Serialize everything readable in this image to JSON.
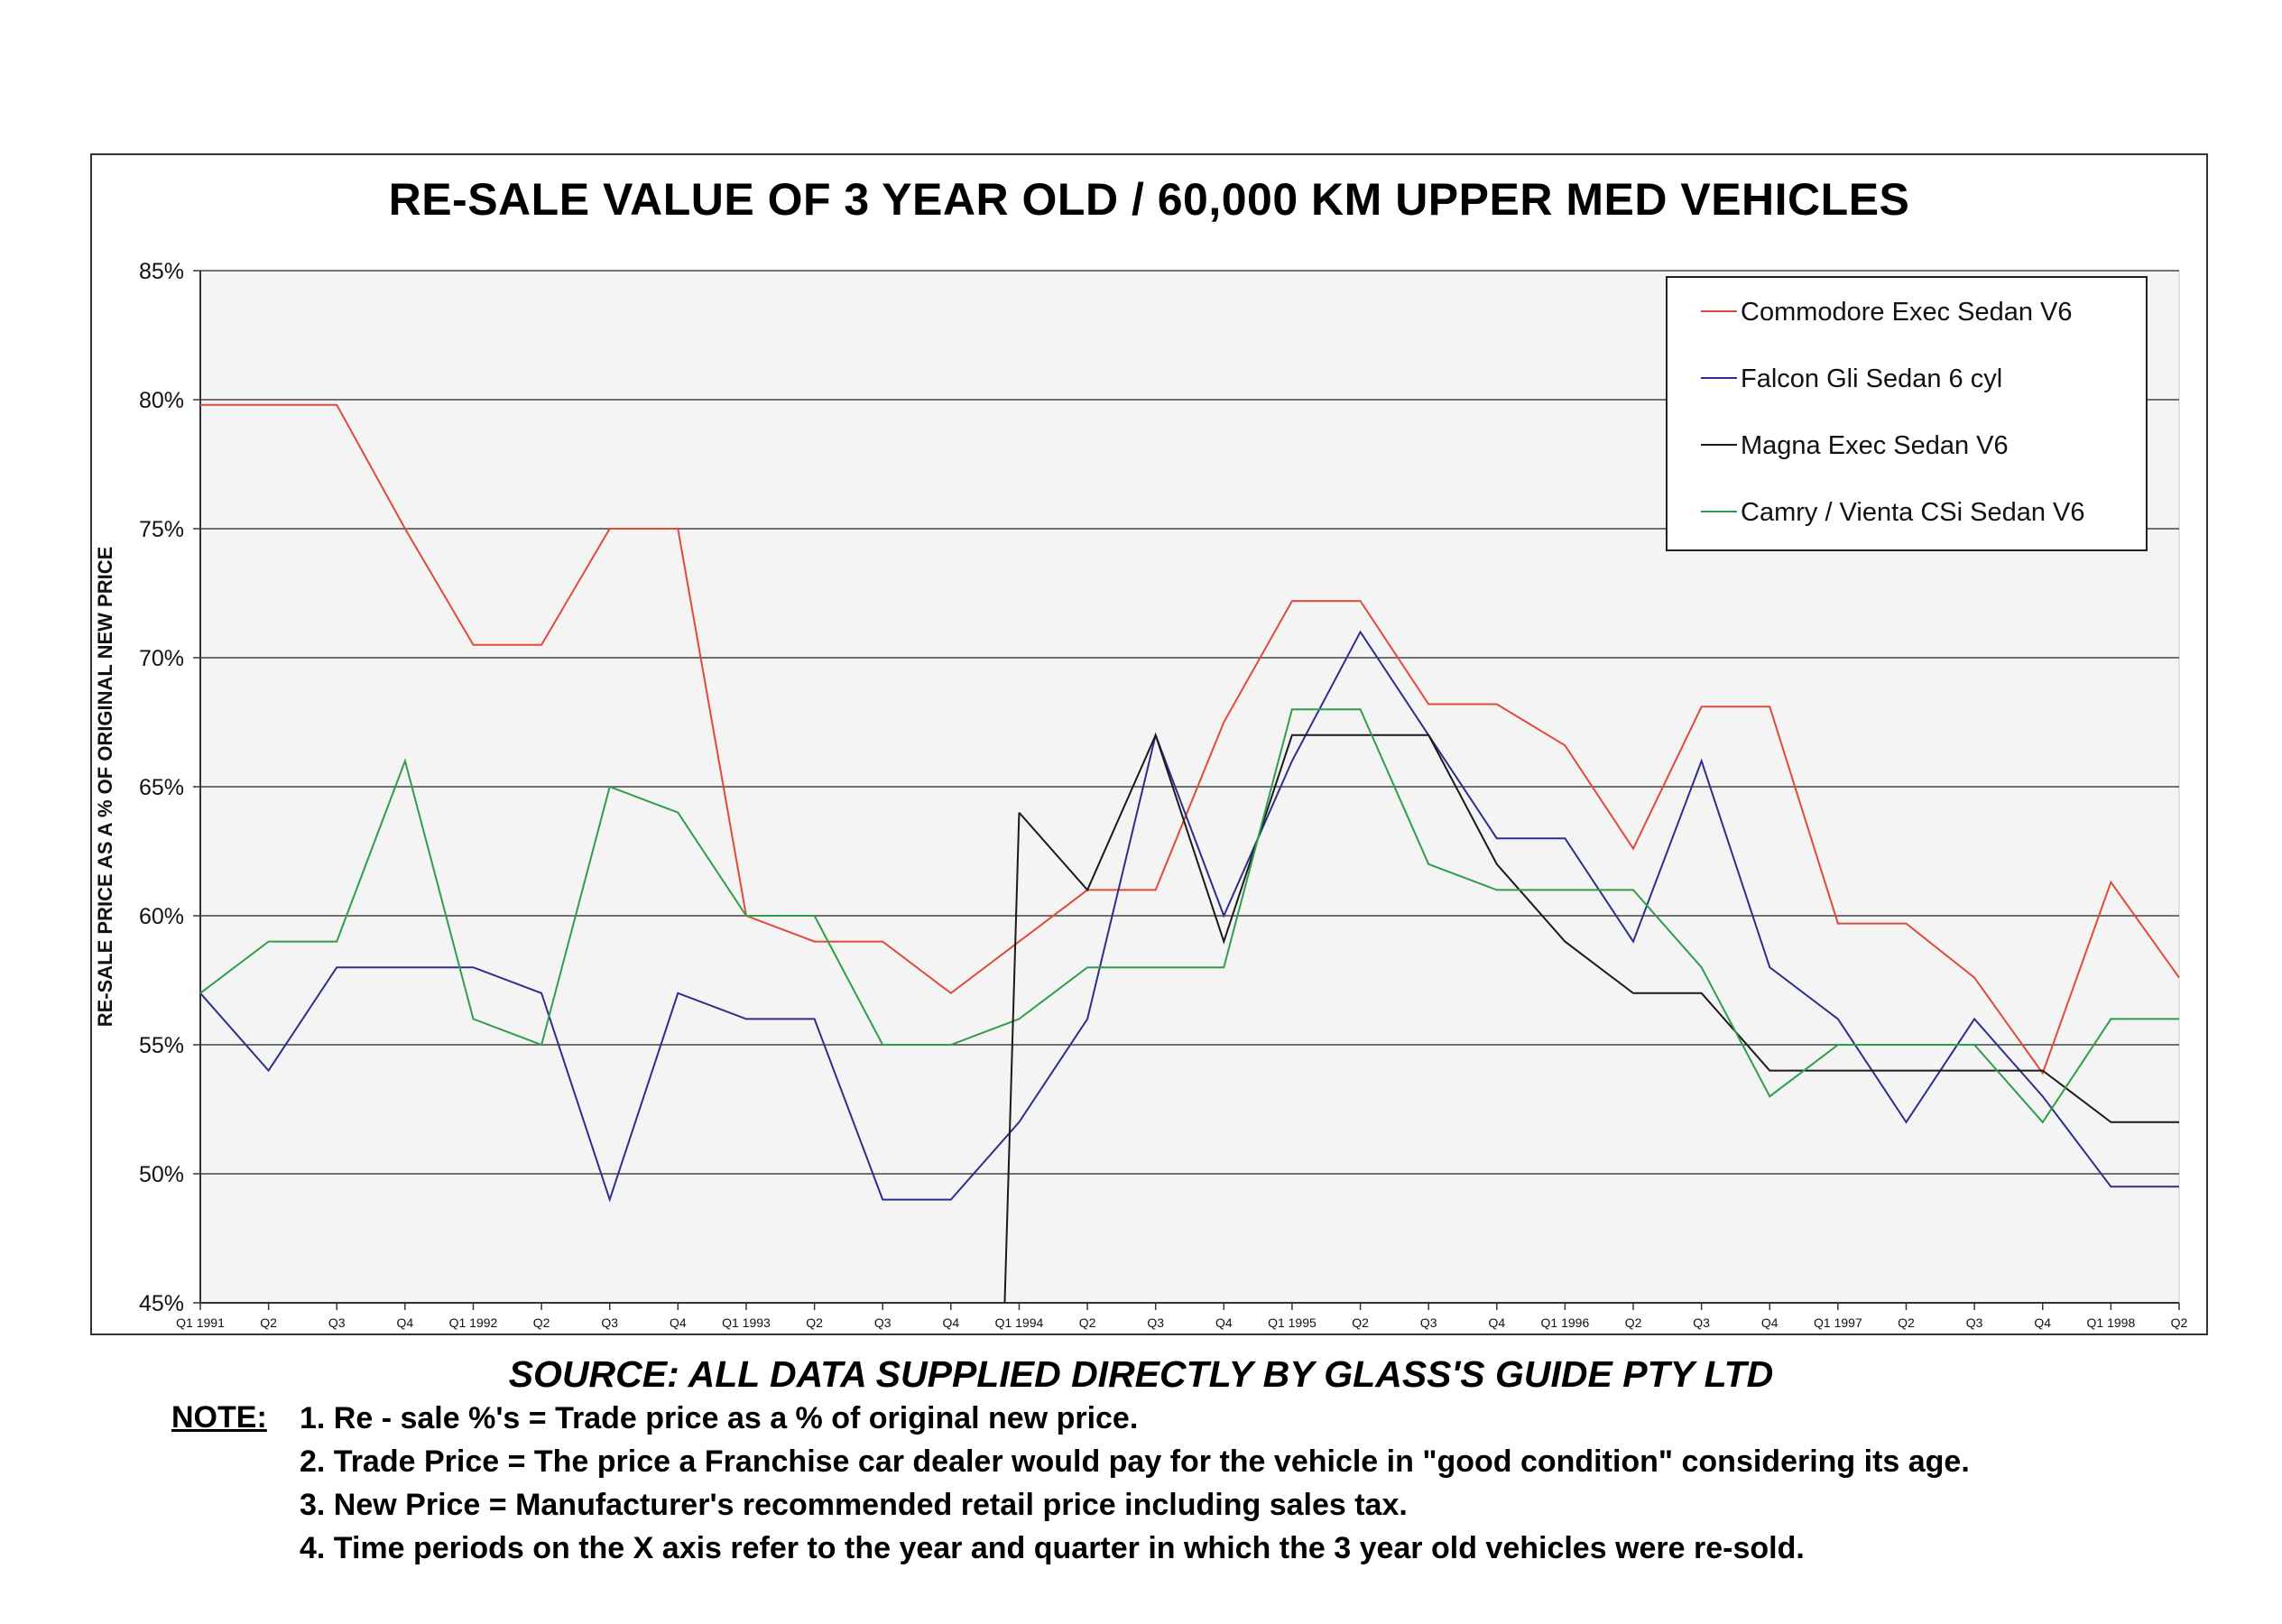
{
  "notes": {
    "label": "NOTE:",
    "items": [
      "1. Re - sale %'s = Trade price as a % of original new price.",
      "2. Trade Price = The price a Franchise car dealer would pay for the vehicle in \"good condition\" considering its age.",
      "3. New Price = Manufacturer's recommended retail price including sales tax.",
      "4. Time periods on the X axis refer to the year and quarter in which the 3 year old vehicles were re-sold."
    ]
  },
  "source": "SOURCE: ALL DATA SUPPLIED DIRECTLY BY GLASS'S GUIDE PTY LTD",
  "chart_data": {
    "type": "line",
    "title": "RE-SALE VALUE OF 3 YEAR OLD / 60,000 KM UPPER MED VEHICLES",
    "ylabel": "RE-SALE PRICE AS A % OF ORIGINAL NEW PRICE",
    "xlabel": "",
    "ylim": [
      45,
      85
    ],
    "yticks": [
      45,
      50,
      55,
      60,
      65,
      70,
      75,
      80,
      85
    ],
    "ytick_labels": [
      "45%",
      "50%",
      "55%",
      "60%",
      "65%",
      "70%",
      "75%",
      "80%",
      "85%"
    ],
    "grid": "horizontal",
    "legend_position": "top-right",
    "categories": [
      "Q1 1991",
      "Q2",
      "Q3",
      "Q4",
      "Q1 1992",
      "Q2",
      "Q3",
      "Q4",
      "Q1 1993",
      "Q2",
      "Q3",
      "Q4",
      "Q1 1994",
      "Q2",
      "Q3",
      "Q4",
      "Q1 1995",
      "Q2",
      "Q3",
      "Q4",
      "Q1 1996",
      "Q2",
      "Q3",
      "Q4",
      "Q1 1997",
      "Q2",
      "Q3",
      "Q4",
      "Q1 1998",
      "Q2"
    ],
    "series": [
      {
        "name": "Commodore Exec Sedan V6",
        "color": "#e04a3a",
        "values": [
          79.8,
          79.8,
          79.8,
          75,
          70.5,
          70.5,
          75,
          75,
          60,
          59,
          59,
          57,
          59,
          61,
          61,
          67.5,
          72.2,
          72.2,
          68.2,
          68.2,
          66.6,
          62.6,
          68.1,
          68.1,
          59.7,
          59.7,
          57.6,
          53.9,
          61.3,
          57.6
        ]
      },
      {
        "name": "Falcon Gli Sedan 6 cyl",
        "color": "#2c2f8c",
        "values": [
          57,
          54,
          58,
          58,
          58,
          57,
          49,
          57,
          56,
          56,
          49,
          49,
          52,
          56,
          67,
          60,
          66,
          71,
          67,
          63,
          63,
          59,
          66,
          58,
          56,
          52,
          56,
          53,
          49.5,
          49.5
        ]
      },
      {
        "name": "Magna Exec Sedan V6",
        "color": "#1a1a1a",
        "values": [
          null,
          null,
          null,
          null,
          null,
          null,
          null,
          null,
          null,
          null,
          null,
          null,
          64,
          61,
          67,
          59,
          67,
          67,
          67,
          62,
          59,
          57,
          57,
          54,
          54,
          54,
          54,
          54,
          52,
          52
        ]
      },
      {
        "name": "Camry / Vienta CSi Sedan V6",
        "color": "#2e9e4a",
        "values": [
          57,
          59,
          59,
          66,
          56,
          55,
          65,
          64,
          60,
          60,
          55,
          55,
          56,
          58,
          58,
          58,
          68,
          68,
          62,
          61,
          61,
          61,
          58,
          53,
          55,
          55,
          55,
          52,
          56,
          56
        ]
      }
    ]
  }
}
